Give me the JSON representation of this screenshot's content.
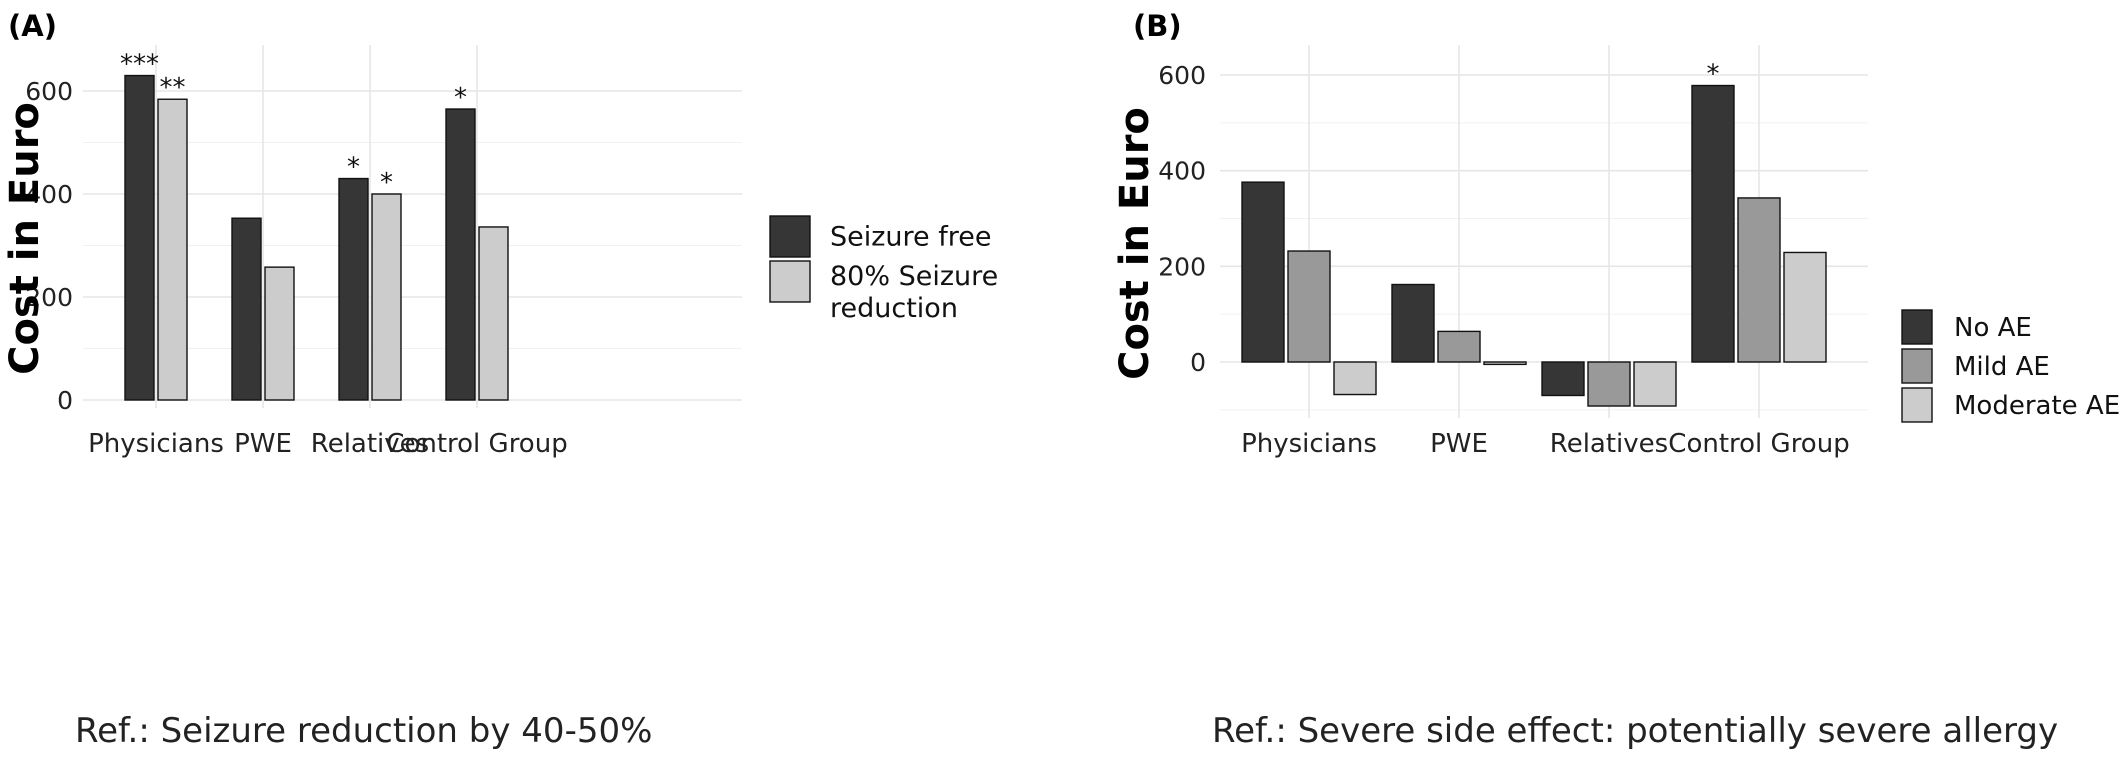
{
  "chart_data": [
    {
      "panel_label": "(A)",
      "type": "bar",
      "ylabel": "Cost in Euro",
      "ylim": [
        0,
        650
      ],
      "yticks": [
        0,
        200,
        400,
        600
      ],
      "grid": true,
      "categories": [
        "Physicians",
        "PWE",
        "Relatives",
        "Control Group"
      ],
      "series": [
        {
          "name": "Seizure free",
          "color": "#363636",
          "values": [
            630,
            353,
            430,
            565
          ],
          "annotations": [
            "***",
            "",
            "*",
            "*"
          ]
        },
        {
          "name": "80% Seizure reduction",
          "legend_lines": [
            "80% Seizure",
            "reduction"
          ],
          "color": "#cccccc",
          "values": [
            584,
            258,
            400,
            336
          ],
          "annotations": [
            "**",
            "",
            "*",
            ""
          ]
        }
      ],
      "legend_position": "right",
      "caption": "Ref.:  Seizure reduction by 40-50%"
    },
    {
      "panel_label": "(B)",
      "type": "bar",
      "ylabel": "Cost in Euro",
      "ylim": [
        -95,
        600
      ],
      "yticks": [
        0,
        200,
        400,
        600
      ],
      "grid": true,
      "categories": [
        "Physicians",
        "PWE",
        "Relatives",
        "Control Group"
      ],
      "series": [
        {
          "name": "No AE",
          "color": "#363636",
          "values": [
            376,
            162,
            -70,
            578
          ],
          "annotations": [
            "",
            "",
            "",
            "*"
          ]
        },
        {
          "name": "Mild AE",
          "color": "#999999",
          "values": [
            232,
            64,
            -92,
            343
          ],
          "annotations": [
            "",
            "",
            "",
            ""
          ]
        },
        {
          "name": "Moderate AE",
          "color": "#cccccc",
          "values": [
            -68,
            -5,
            -92,
            229
          ],
          "annotations": [
            "",
            "",
            "",
            ""
          ]
        }
      ],
      "legend_position": "right",
      "caption": "Ref.:  Severe side effect: potentially severe allergy"
    }
  ]
}
